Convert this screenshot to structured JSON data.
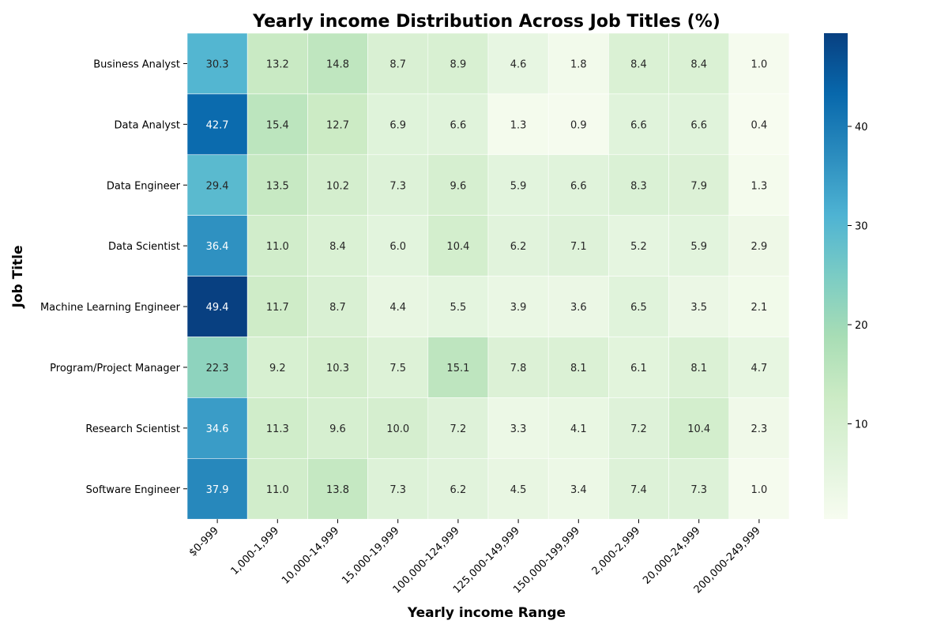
{
  "chart_data": {
    "type": "heatmap",
    "title": "Yearly income Distribution Across Job Titles (%)",
    "xlabel": "Yearly income Range",
    "ylabel": "Job Title",
    "x_categories": [
      "$0-999",
      "1,000-1,999",
      "10,000-14,999",
      "15,000-19,999",
      "100,000-124,999",
      "125,000-149,999",
      "150,000-199,999",
      "2,000-2,999",
      "20,000-24,999",
      "200,000-249,999"
    ],
    "y_categories": [
      "Business Analyst",
      "Data Analyst",
      "Data Engineer",
      "Data Scientist",
      "Machine Learning Engineer",
      "Program/Project Manager",
      "Research Scientist",
      "Software Engineer"
    ],
    "values": [
      [
        30.3,
        13.2,
        14.8,
        8.7,
        8.9,
        4.6,
        1.8,
        8.4,
        8.4,
        1.0
      ],
      [
        42.7,
        15.4,
        12.7,
        6.9,
        6.6,
        1.3,
        0.9,
        6.6,
        6.6,
        0.4
      ],
      [
        29.4,
        13.5,
        10.2,
        7.3,
        9.6,
        5.9,
        6.6,
        8.3,
        7.9,
        1.3
      ],
      [
        36.4,
        11.0,
        8.4,
        6.0,
        10.4,
        6.2,
        7.1,
        5.2,
        5.9,
        2.9
      ],
      [
        49.4,
        11.7,
        8.7,
        4.4,
        5.5,
        3.9,
        3.6,
        6.5,
        3.5,
        2.1
      ],
      [
        22.3,
        9.2,
        10.3,
        7.5,
        15.1,
        7.8,
        8.1,
        6.1,
        8.1,
        4.7
      ],
      [
        34.6,
        11.3,
        9.6,
        10.0,
        7.2,
        3.3,
        4.1,
        7.2,
        10.4,
        2.3
      ],
      [
        37.9,
        11.0,
        13.8,
        7.3,
        6.2,
        4.5,
        3.4,
        7.4,
        7.3,
        1.0
      ]
    ],
    "value_range": [
      0.4,
      49.4
    ],
    "colormap": "GnBu",
    "colorbar_ticks": [
      10,
      20,
      30,
      40
    ],
    "annotations_format": "0.1f"
  }
}
